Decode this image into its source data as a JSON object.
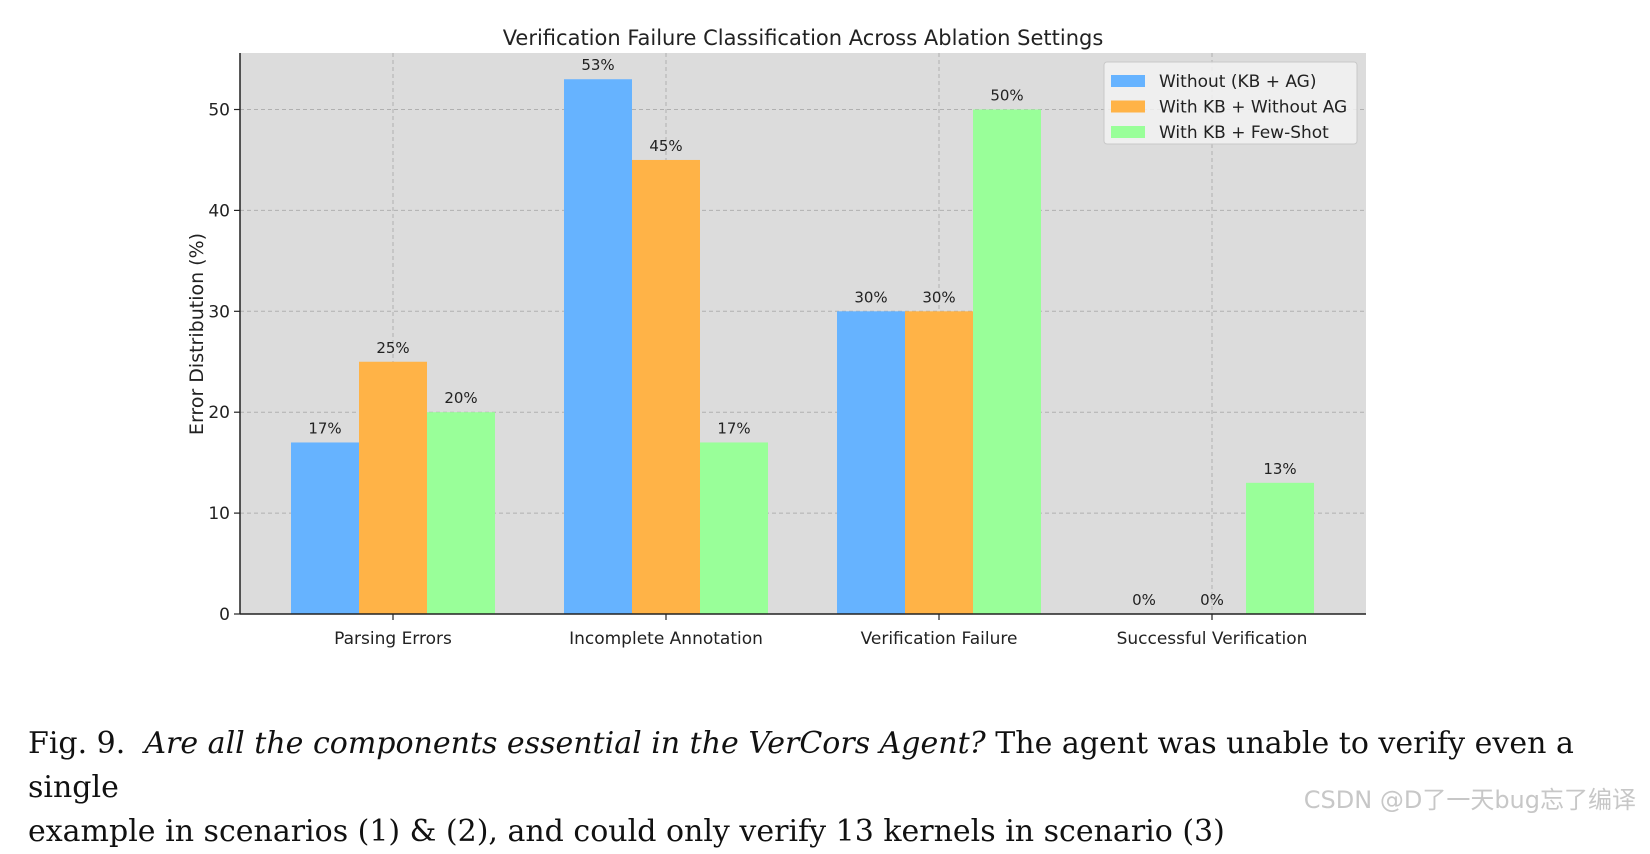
{
  "chart_data": {
    "type": "bar",
    "title": "Verification Failure Classification Across Ablation Settings",
    "xlabel": "",
    "ylabel": "Error Distribution (%)",
    "ylim": [
      0,
      55.6
    ],
    "yticks": [
      0,
      10,
      20,
      30,
      40,
      50
    ],
    "grid": true,
    "legend_position": "top-right",
    "categories": [
      "Parsing Errors",
      "Incomplete Annotation",
      "Verification Failure",
      "Successful Verification"
    ],
    "series": [
      {
        "name": "Without (KB + AG)",
        "color": "#66b3ff",
        "values": [
          17,
          53,
          30,
          0
        ],
        "labels": [
          "17%",
          "53%",
          "30%",
          "0%"
        ]
      },
      {
        "name": "With KB + Without AG",
        "color": "#ffb347",
        "values": [
          25,
          45,
          30,
          0
        ],
        "labels": [
          "25%",
          "45%",
          "30%",
          "0%"
        ]
      },
      {
        "name": "With KB + Few-Shot",
        "color": "#99ff99",
        "values": [
          20,
          17,
          50,
          13
        ],
        "labels": [
          "20%",
          "17%",
          "50%",
          "13%"
        ]
      }
    ]
  },
  "caption": {
    "fig_label": "Fig. 9.",
    "italic_text": "Are all the components essential in the VerCors Agent?",
    "text_line1": "The agent was unable to verify even a single",
    "text_line2": "example in scenarios (1) & (2), and could only verify 13 kernels in scenario (3)"
  },
  "watermark": "CSDN @D了一天bug忘了编译"
}
